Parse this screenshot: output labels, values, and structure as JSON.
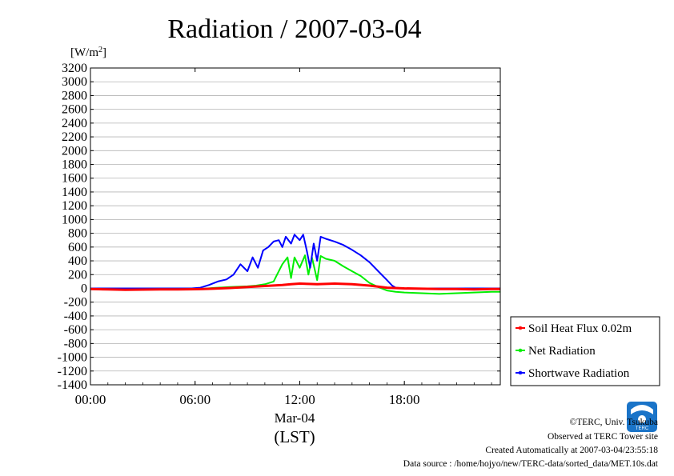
{
  "chart_data": {
    "type": "line",
    "title": "Radiation / 2007-03-04",
    "ylabel_unit": "[W/m",
    "ylabel_unit_sup": "2",
    "ylabel_unit_close": "]",
    "xlim_hours": [
      0,
      23.5
    ],
    "ylim": [
      -1400,
      3200
    ],
    "y_ticks": [
      3200,
      3000,
      2800,
      2600,
      2400,
      2200,
      2000,
      1800,
      1600,
      1400,
      1200,
      1000,
      800,
      600,
      400,
      200,
      0,
      -200,
      -400,
      -600,
      -800,
      -1000,
      -1200,
      -1400
    ],
    "x_ticks": [
      {
        "hour": 0,
        "label": "00:00"
      },
      {
        "hour": 6,
        "label": "06:00"
      },
      {
        "hour": 12,
        "label": "12:00"
      },
      {
        "hour": 18,
        "label": "18:00"
      }
    ],
    "x_sublabel": "Mar-04",
    "x_axis_label": "(LST)",
    "grid": true,
    "legend_position": "right",
    "series": [
      {
        "name": "Soil Heat Flux 0.02m",
        "color": "#ff0000",
        "points": [
          [
            0,
            -10
          ],
          [
            1,
            -15
          ],
          [
            2,
            -20
          ],
          [
            3,
            -18
          ],
          [
            4,
            -15
          ],
          [
            5,
            -15
          ],
          [
            6,
            -12
          ],
          [
            7,
            -5
          ],
          [
            8,
            5
          ],
          [
            9,
            20
          ],
          [
            10,
            35
          ],
          [
            11,
            50
          ],
          [
            11.5,
            60
          ],
          [
            12,
            70
          ],
          [
            12.5,
            65
          ],
          [
            13,
            60
          ],
          [
            13.5,
            65
          ],
          [
            14,
            70
          ],
          [
            15,
            60
          ],
          [
            16,
            40
          ],
          [
            17,
            10
          ],
          [
            18,
            0
          ],
          [
            19,
            -5
          ],
          [
            20,
            -10
          ],
          [
            21,
            -10
          ],
          [
            22,
            -15
          ],
          [
            23,
            -10
          ],
          [
            23.5,
            -10
          ]
        ]
      },
      {
        "name": "Net Radiation",
        "color": "#00ee00",
        "points": [
          [
            0,
            -10
          ],
          [
            6,
            -10
          ],
          [
            6.5,
            -5
          ],
          [
            7,
            5
          ],
          [
            8,
            20
          ],
          [
            9,
            30
          ],
          [
            9.5,
            40
          ],
          [
            10,
            60
          ],
          [
            10.5,
            100
          ],
          [
            10.7,
            200
          ],
          [
            11,
            350
          ],
          [
            11.3,
            450
          ],
          [
            11.5,
            150
          ],
          [
            11.7,
            450
          ],
          [
            12,
            300
          ],
          [
            12.3,
            480
          ],
          [
            12.5,
            200
          ],
          [
            12.7,
            450
          ],
          [
            13,
            120
          ],
          [
            13.2,
            470
          ],
          [
            13.5,
            430
          ],
          [
            14,
            400
          ],
          [
            14.5,
            320
          ],
          [
            15,
            250
          ],
          [
            15.5,
            180
          ],
          [
            16,
            80
          ],
          [
            16.5,
            20
          ],
          [
            17,
            -30
          ],
          [
            17.5,
            -50
          ],
          [
            18,
            -60
          ],
          [
            19,
            -70
          ],
          [
            20,
            -80
          ],
          [
            21,
            -70
          ],
          [
            22,
            -60
          ],
          [
            23,
            -50
          ],
          [
            23.5,
            -50
          ]
        ]
      },
      {
        "name": "Shortwave Radiation",
        "color": "#0000ff",
        "points": [
          [
            0,
            0
          ],
          [
            5.8,
            0
          ],
          [
            6.3,
            10
          ],
          [
            6.8,
            50
          ],
          [
            7.3,
            100
          ],
          [
            7.8,
            130
          ],
          [
            8.2,
            200
          ],
          [
            8.6,
            350
          ],
          [
            9,
            250
          ],
          [
            9.3,
            450
          ],
          [
            9.6,
            300
          ],
          [
            9.9,
            550
          ],
          [
            10.2,
            600
          ],
          [
            10.5,
            680
          ],
          [
            10.8,
            700
          ],
          [
            11,
            600
          ],
          [
            11.2,
            750
          ],
          [
            11.5,
            650
          ],
          [
            11.7,
            780
          ],
          [
            12,
            700
          ],
          [
            12.2,
            780
          ],
          [
            12.4,
            550
          ],
          [
            12.6,
            300
          ],
          [
            12.8,
            650
          ],
          [
            13,
            400
          ],
          [
            13.2,
            750
          ],
          [
            13.5,
            720
          ],
          [
            14,
            680
          ],
          [
            14.5,
            630
          ],
          [
            15,
            560
          ],
          [
            15.5,
            480
          ],
          [
            16,
            380
          ],
          [
            16.5,
            250
          ],
          [
            17,
            120
          ],
          [
            17.3,
            40
          ],
          [
            17.5,
            10
          ],
          [
            18,
            0
          ],
          [
            23.5,
            0
          ]
        ]
      }
    ]
  },
  "credits": {
    "copyright": "©TERC, Univ. Tsukuba",
    "observed": "Observed at TERC Tower site",
    "created": "Created Automatically at 2007-03-04/23:55:18",
    "source": "Data source : /home/hojyo/new/TERC-data/sorted_data/MET.10s.dat"
  },
  "logo": {
    "text": "TERC",
    "color": "#1a74c8"
  }
}
